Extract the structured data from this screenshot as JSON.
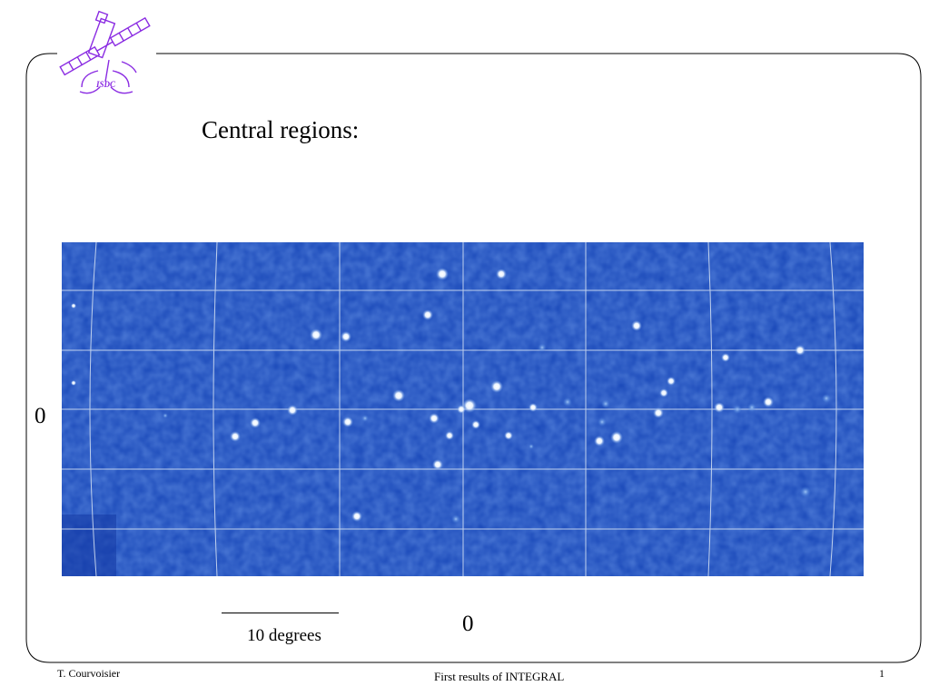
{
  "slide": {
    "title": "Central regions:",
    "lat_label": "0",
    "lon_label": "0",
    "scale_label": "10 degrees"
  },
  "logo": {
    "text": "ISDC",
    "color": "#8a2be2"
  },
  "footer": {
    "author": "T. Courvoisier",
    "title": "First results of INTEGRAL",
    "page": "1"
  },
  "sky_map": {
    "background_color": "#1847b8",
    "grid_color": "#d8e4f4"
  }
}
